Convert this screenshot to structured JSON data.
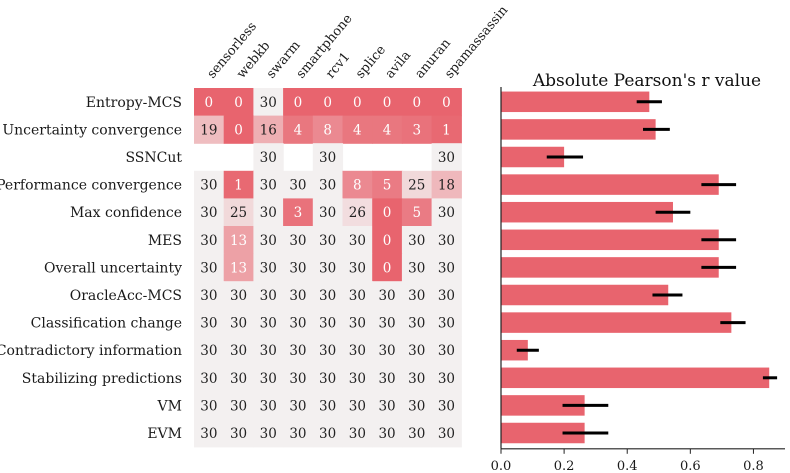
{
  "chart_data": [
    {
      "type": "heatmap",
      "columns": [
        "sensorless",
        "webkb",
        "swarm",
        "smartphone",
        "rcv1",
        "splice",
        "avila",
        "anuran",
        "spamassassin"
      ],
      "rows": [
        "Entropy-MCS",
        "Uncertainty convergence",
        "SSNCut",
        "Performance convergence",
        "Max confidence",
        "MES",
        "Overall uncertainty",
        "OracleAcc-MCS",
        "Classification change",
        "Contradictory information",
        "Stabilizing predictions",
        "VM",
        "EVM"
      ],
      "values": [
        [
          0,
          0,
          30,
          0,
          0,
          0,
          0,
          0,
          0
        ],
        [
          19,
          0,
          16,
          4,
          8,
          4,
          4,
          3,
          1
        ],
        [
          null,
          null,
          30,
          null,
          30,
          null,
          null,
          null,
          30
        ],
        [
          30,
          1,
          30,
          30,
          30,
          8,
          5,
          25,
          18
        ],
        [
          30,
          25,
          30,
          3,
          30,
          26,
          0,
          5,
          30
        ],
        [
          30,
          13,
          30,
          30,
          30,
          30,
          0,
          30,
          30
        ],
        [
          30,
          13,
          30,
          30,
          30,
          30,
          0,
          30,
          30
        ],
        [
          30,
          30,
          30,
          30,
          30,
          30,
          30,
          30,
          30
        ],
        [
          30,
          30,
          30,
          30,
          30,
          30,
          30,
          30,
          30
        ],
        [
          30,
          30,
          30,
          30,
          30,
          30,
          30,
          30,
          30
        ],
        [
          30,
          30,
          30,
          30,
          30,
          30,
          30,
          30,
          30
        ],
        [
          30,
          30,
          30,
          30,
          30,
          30,
          30,
          30,
          30
        ],
        [
          30,
          30,
          30,
          30,
          30,
          30,
          30,
          30,
          30
        ]
      ],
      "colors": {
        "low": "#e8646e",
        "high": "#f3f0f0",
        "text_on_low": "#ffffff",
        "text_on_high": "#222222"
      }
    },
    {
      "type": "bar",
      "orientation": "horizontal",
      "title": "Absolute Pearson's r value",
      "categories": [
        "Entropy-MCS",
        "Uncertainty convergence",
        "SSNCut",
        "Performance convergence",
        "Max confidence",
        "MES",
        "Overall uncertainty",
        "OracleAcc-MCS",
        "Classification change",
        "Contradictory information",
        "Stabilizing predictions",
        "VM",
        "EVM"
      ],
      "values": [
        0.47,
        0.49,
        0.2,
        0.69,
        0.545,
        0.69,
        0.69,
        0.53,
        0.73,
        0.085,
        0.85,
        0.265,
        0.265
      ],
      "error": [
        [
          0.43,
          0.51
        ],
        [
          0.45,
          0.535
        ],
        [
          0.145,
          0.26
        ],
        [
          0.635,
          0.745
        ],
        [
          0.49,
          0.6
        ],
        [
          0.635,
          0.745
        ],
        [
          0.635,
          0.745
        ],
        [
          0.48,
          0.575
        ],
        [
          0.695,
          0.775
        ],
        [
          0.05,
          0.12
        ],
        [
          0.83,
          0.875
        ],
        [
          0.195,
          0.34
        ],
        [
          0.195,
          0.34
        ]
      ],
      "xlim": [
        0,
        0.9
      ],
      "xticks": [
        0.0,
        0.2,
        0.4,
        0.6,
        0.8
      ],
      "xtick_labels": [
        "0.0",
        "0.2",
        "0.4",
        "0.6",
        "0.8"
      ],
      "bar_color": "#e8646e",
      "error_color": "#000000"
    }
  ]
}
